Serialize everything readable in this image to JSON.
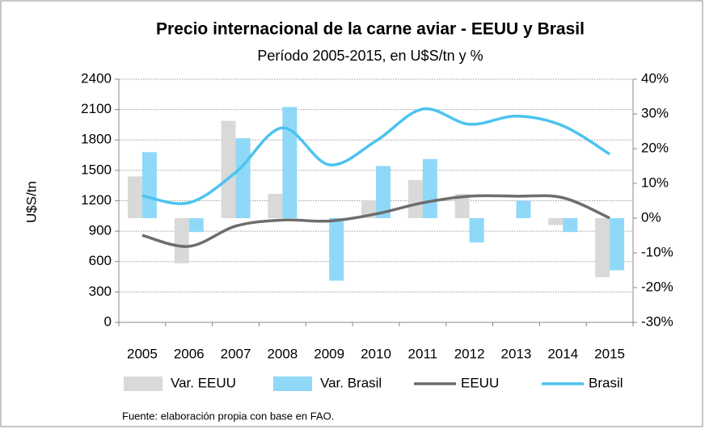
{
  "chart_data": {
    "type": "bar",
    "title": "Precio internacional de la carne aviar - EEUU y Brasil",
    "subtitle": "Período 2005-2015,  en U$S/tn y %",
    "ylabel": "U$S/tn",
    "footnote": "Fuente: elaboración propia  con base en FAO.",
    "categories": [
      "2005",
      "2006",
      "2007",
      "2008",
      "2009",
      "2010",
      "2011",
      "2012",
      "2013",
      "2014",
      "2015"
    ],
    "ylim": [
      0,
      2400
    ],
    "yticks": [
      0,
      300,
      600,
      900,
      1200,
      1500,
      1800,
      2100,
      2400
    ],
    "y2lim": [
      -30,
      40
    ],
    "y2ticks": [
      {
        "value": -30,
        "label": "-30%"
      },
      {
        "value": -20,
        "label": "-20%"
      },
      {
        "value": -10,
        "label": "-10%"
      },
      {
        "value": 0,
        "label": "0%"
      },
      {
        "value": 10,
        "label": "10%"
      },
      {
        "value": 20,
        "label": "20%"
      },
      {
        "value": 30,
        "label": "30%"
      },
      {
        "value": 40,
        "label": "40%"
      }
    ],
    "grid": true,
    "legend": "bottom",
    "series": [
      {
        "name": "Var. EEUU",
        "type": "bar",
        "axis": "y2",
        "color": "#d9d9d9",
        "values": [
          12,
          -13,
          28,
          7,
          0,
          5,
          11,
          7,
          0,
          -2,
          -17
        ]
      },
      {
        "name": "Var. Brasil",
        "type": "bar",
        "axis": "y2",
        "color": "#8fd8f8",
        "values": [
          19,
          -4,
          23,
          32,
          -18,
          15,
          17,
          -7,
          5,
          -4,
          -15
        ]
      },
      {
        "name": "EEUU",
        "type": "line",
        "color": "#6d6d6d",
        "values": [
          860,
          750,
          950,
          1010,
          1000,
          1070,
          1180,
          1245,
          1245,
          1230,
          1030
        ]
      },
      {
        "name": "Brasil",
        "type": "line",
        "color": "#4cc3f0",
        "values": [
          1250,
          1180,
          1480,
          1920,
          1555,
          1790,
          2105,
          1955,
          2035,
          1940,
          1660
        ]
      }
    ]
  }
}
